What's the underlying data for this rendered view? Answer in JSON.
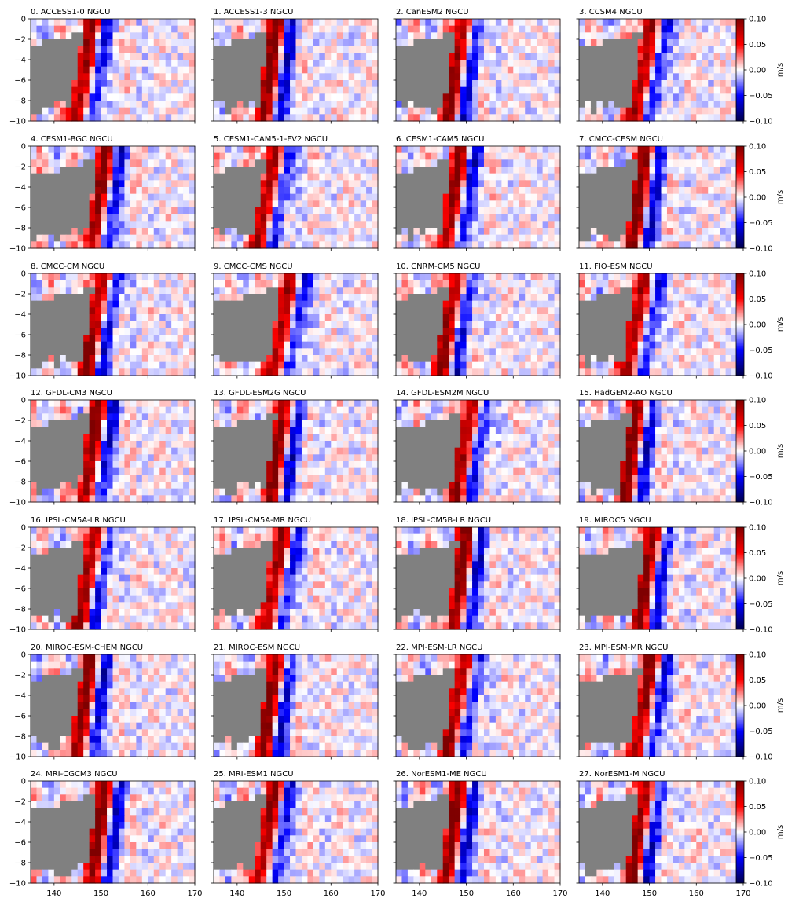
{
  "figure": {
    "x_ticks": [
      "140",
      "150",
      "160",
      "170"
    ],
    "y_ticks": [
      "0",
      "−2",
      "−4",
      "−6",
      "−8",
      "−10"
    ],
    "colorbar": {
      "ticks": [
        "0.10",
        "0.05",
        "0.00",
        "−0.05",
        "−0.10"
      ],
      "label": "m/s",
      "range": [
        -0.1,
        0.1
      ],
      "colormap": "seismic",
      "colors": [
        "#00004c",
        "#0000ff",
        "#ffffff",
        "#ff0000",
        "#7f0000"
      ]
    },
    "land_color": "#808080"
  },
  "chart_data": {
    "type": "heatmap",
    "layout": "7 rows x 4 columns",
    "xlim": [
      135,
      170
    ],
    "ylim": [
      -10,
      0
    ],
    "clim": [
      -0.1,
      0.1
    ],
    "panels": [
      {
        "title": "0. ACCESS1-0 NGCU"
      },
      {
        "title": "1. ACCESS1-3 NGCU"
      },
      {
        "title": "2. CanESM2 NGCU"
      },
      {
        "title": "3. CCSM4 NGCU"
      },
      {
        "title": "4. CESM1-BGC NGCU"
      },
      {
        "title": "5. CESM1-CAM5-1-FV2 NGCU"
      },
      {
        "title": "6. CESM1-CAM5 NGCU"
      },
      {
        "title": "7. CMCC-CESM NGCU"
      },
      {
        "title": "8. CMCC-CM NGCU"
      },
      {
        "title": "9. CMCC-CMS NGCU"
      },
      {
        "title": "10. CNRM-CM5 NGCU"
      },
      {
        "title": "11. FIO-ESM NGCU"
      },
      {
        "title": "12. GFDL-CM3 NGCU"
      },
      {
        "title": "13. GFDL-ESM2G NGCU"
      },
      {
        "title": "14. GFDL-ESM2M NGCU"
      },
      {
        "title": "15. HadGEM2-AO NGCU"
      },
      {
        "title": "16. IPSL-CM5A-LR NGCU"
      },
      {
        "title": "17. IPSL-CM5A-MR NGCU"
      },
      {
        "title": "18. IPSL-CM5B-LR NGCU"
      },
      {
        "title": "19. MIROC5 NGCU"
      },
      {
        "title": "20. MIROC-ESM-CHEM NGCU"
      },
      {
        "title": "21. MIROC-ESM NGCU"
      },
      {
        "title": "22. MPI-ESM-LR NGCU"
      },
      {
        "title": "23. MPI-ESM-MR NGCU"
      },
      {
        "title": "24. MRI-CGCM3 NGCU"
      },
      {
        "title": "25. MRI-ESM1 NGCU"
      },
      {
        "title": "26. NorESM1-ME NGCU"
      },
      {
        "title": "27. NorESM1-M NGCU"
      }
    ]
  }
}
